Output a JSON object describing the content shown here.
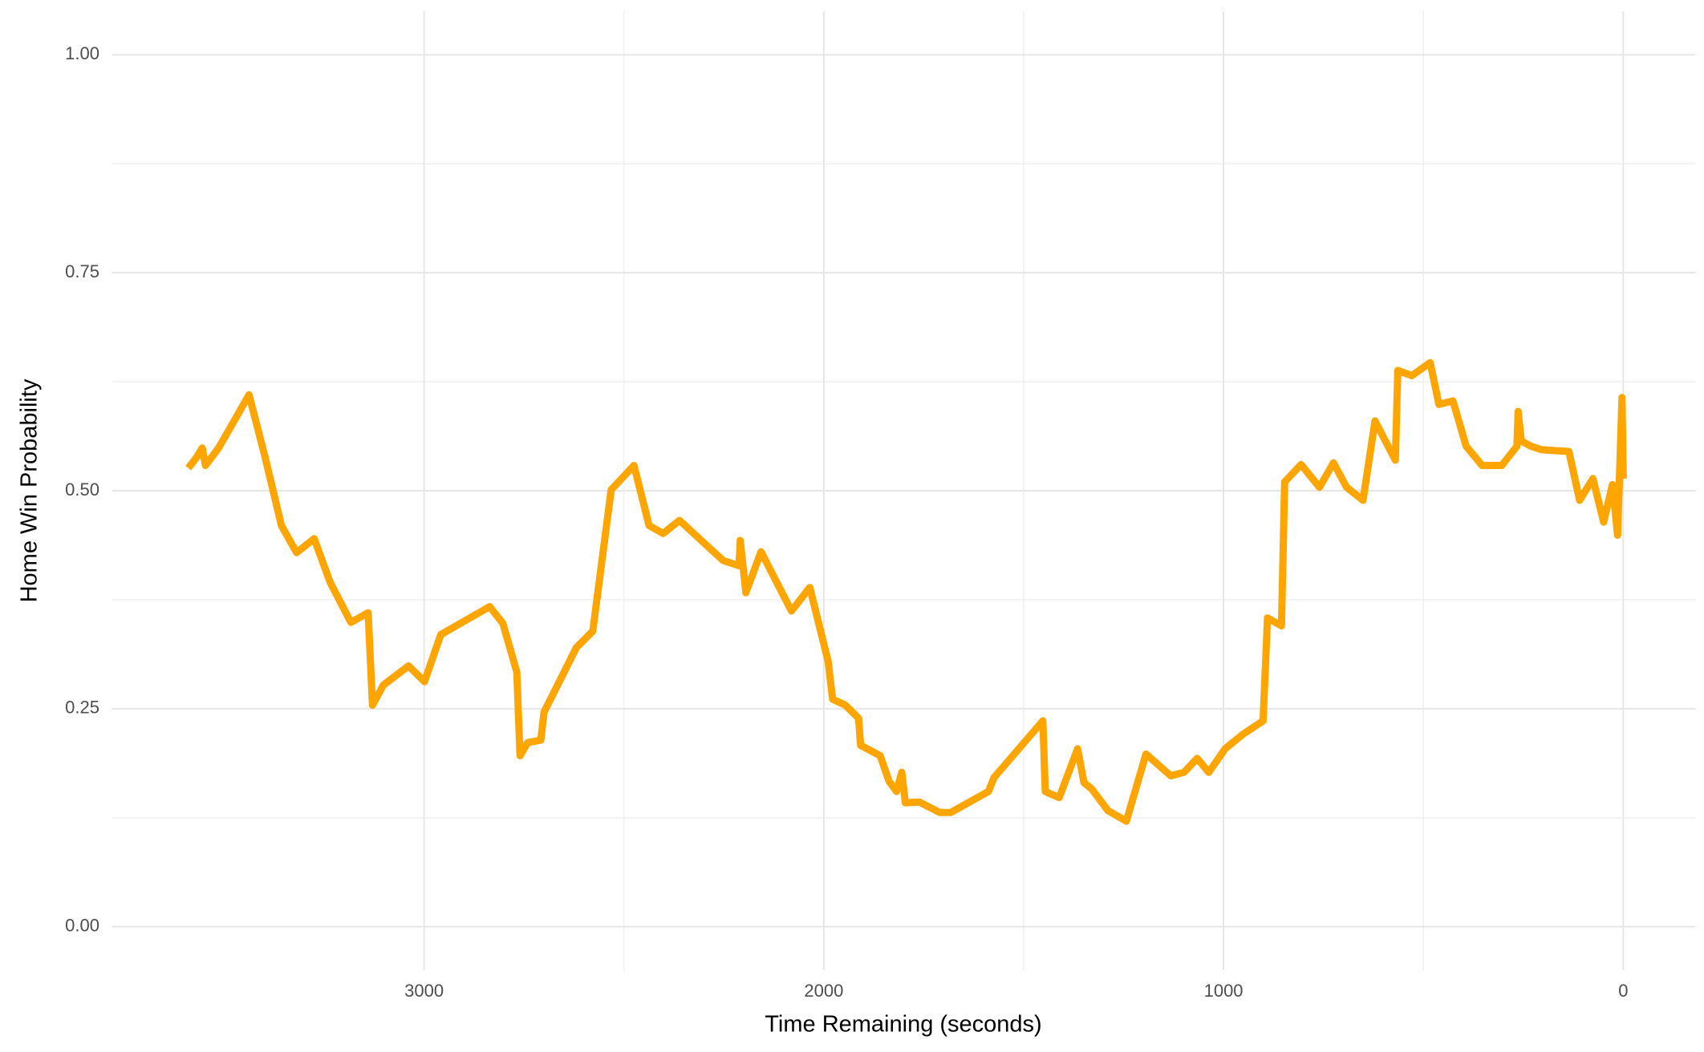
{
  "chart_data": {
    "type": "line",
    "xlabel": "Time Remaining (seconds)",
    "ylabel": "Home Win Probability",
    "xlim": [
      3780,
      -180
    ],
    "ylim": [
      -0.05,
      1.05
    ],
    "xticks": [
      3000,
      2000,
      1000,
      0
    ],
    "xminorticks": [
      2500,
      1500,
      500
    ],
    "yticks": [
      {
        "value": 0,
        "label": "0.00"
      },
      {
        "value": 0.25,
        "label": "0.25"
      },
      {
        "value": 0.5,
        "label": "0.50"
      },
      {
        "value": 0.75,
        "label": "0.75"
      },
      {
        "value": 1,
        "label": "1.00"
      }
    ],
    "yminorticks": [
      0.125,
      0.375,
      0.625,
      0.875
    ],
    "grid": true,
    "series": [
      {
        "color": "#FFA500",
        "x": [
          3590,
          3568,
          3555,
          3547,
          3514,
          3438,
          3398,
          3357,
          3319,
          3275,
          3235,
          3183,
          3140,
          3129,
          3102,
          3039,
          2999,
          2958,
          2836,
          2803,
          2768,
          2760,
          2741,
          2708,
          2700,
          2619,
          2578,
          2532,
          2475,
          2437,
          2402,
          2361,
          2252,
          2212,
          2209,
          2195,
          2157,
          2081,
          2035,
          1989,
          1978,
          1946,
          1913,
          1908,
          1859,
          1837,
          1818,
          1805,
          1796,
          1761,
          1710,
          1682,
          1588,
          1574,
          1452,
          1446,
          1411,
          1365,
          1349,
          1330,
          1289,
          1243,
          1194,
          1132,
          1099,
          1066,
          1037,
          996,
          950,
          901,
          890,
          855,
          847,
          806,
          760,
          725,
          692,
          651,
          621,
          570,
          564,
          529,
          483,
          461,
          426,
          393,
          353,
          304,
          266,
          263,
          255,
          231,
          204,
          136,
          109,
          76,
          49,
          27,
          14,
          3,
          0
        ],
        "values": [
          0.526,
          0.539,
          0.549,
          0.529,
          0.549,
          0.61,
          0.539,
          0.46,
          0.429,
          0.445,
          0.395,
          0.349,
          0.36,
          0.254,
          0.277,
          0.299,
          0.281,
          0.335,
          0.367,
          0.348,
          0.292,
          0.196,
          0.211,
          0.214,
          0.246,
          0.32,
          0.339,
          0.501,
          0.529,
          0.46,
          0.451,
          0.466,
          0.42,
          0.414,
          0.443,
          0.383,
          0.43,
          0.362,
          0.389,
          0.304,
          0.261,
          0.254,
          0.239,
          0.208,
          0.196,
          0.167,
          0.155,
          0.177,
          0.142,
          0.143,
          0.131,
          0.131,
          0.155,
          0.171,
          0.236,
          0.155,
          0.148,
          0.204,
          0.165,
          0.158,
          0.133,
          0.121,
          0.198,
          0.173,
          0.177,
          0.193,
          0.177,
          0.204,
          0.221,
          0.236,
          0.354,
          0.345,
          0.51,
          0.53,
          0.504,
          0.532,
          0.504,
          0.489,
          0.58,
          0.535,
          0.638,
          0.632,
          0.647,
          0.599,
          0.603,
          0.551,
          0.529,
          0.529,
          0.551,
          0.591,
          0.557,
          0.551,
          0.547,
          0.545,
          0.489,
          0.514,
          0.464,
          0.507,
          0.449,
          0.607,
          0.514
        ]
      }
    ]
  }
}
